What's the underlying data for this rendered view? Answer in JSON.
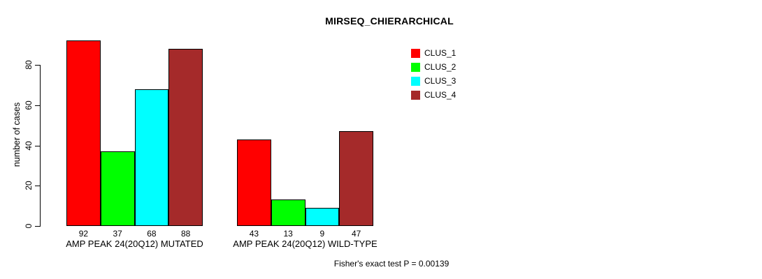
{
  "chart_data": {
    "type": "bar",
    "title": "MIRSEQ_CHIERARCHICAL",
    "ylabel": "number of cases",
    "xlabel": "",
    "categories": [
      "AMP PEAK 24(20Q12) MUTATED",
      "AMP PEAK 24(20Q12) WILD-TYPE"
    ],
    "series": [
      {
        "name": "CLUS_1",
        "color": "#FF0000",
        "values": [
          92,
          43
        ]
      },
      {
        "name": "CLUS_2",
        "color": "#00FF00",
        "values": [
          37,
          13
        ]
      },
      {
        "name": "CLUS_3",
        "color": "#00FFFF",
        "values": [
          68,
          9
        ]
      },
      {
        "name": "CLUS_4",
        "color": "#A52A2A",
        "values": [
          88,
          47
        ]
      }
    ],
    "yticks": [
      0,
      20,
      40,
      60,
      80
    ],
    "ylim": [
      0,
      92
    ],
    "grid": false,
    "legend_position": "top-right",
    "bar_value_labels": true,
    "annotation": "Fisher's exact test P = 0.00139",
    "colors": {
      "axis": "#000000",
      "text": "#000000",
      "background": "#FFFFFF",
      "bar_border": "#000000"
    }
  }
}
